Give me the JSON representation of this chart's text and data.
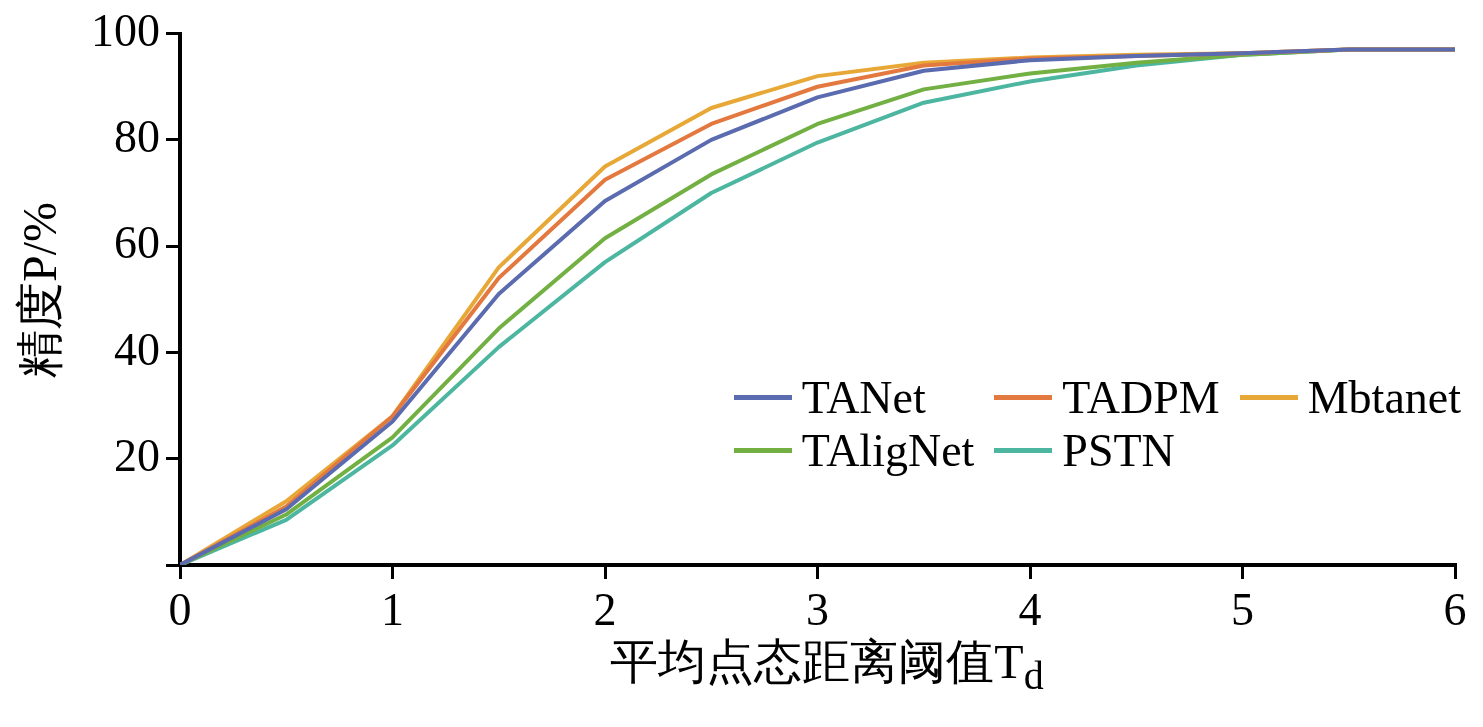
{
  "chart_data": {
    "type": "line",
    "xlabel": "平均点态距离阈值T$_{d}$",
    "ylabel": "精度P/%",
    "x": [
      0,
      0.5,
      1,
      1.5,
      2,
      2.5,
      3,
      3.5,
      4,
      4.5,
      5,
      5.5,
      6
    ],
    "xlim": [
      0,
      6
    ],
    "xticks": [
      0,
      1,
      2,
      3,
      4,
      5,
      6
    ],
    "ylim": [
      0,
      100
    ],
    "yticks": [
      {
        "value": 0,
        "label": null
      },
      20,
      40,
      60,
      80,
      100
    ],
    "grid": false,
    "legend": "bottom right",
    "marker": "none",
    "line_style": "solid",
    "series": [
      {
        "name": "TANet",
        "color": "#5b6bb0",
        "values": [
          0,
          10.5,
          27,
          51,
          68.5,
          80,
          88,
          93,
          95,
          95.8,
          96.3,
          97,
          97
        ]
      },
      {
        "name": "TADPM",
        "color": "#e4793f",
        "values": [
          0,
          11,
          28,
          54,
          72.5,
          83,
          90,
          94,
          95.3,
          95.8,
          96.3,
          97,
          97
        ]
      },
      {
        "name": "Mbtanet",
        "color": "#e8a838",
        "values": [
          0,
          12,
          28,
          56,
          75,
          86,
          92,
          94.5,
          95.5,
          96,
          96.3,
          97,
          97
        ]
      },
      {
        "name": "TAligNet",
        "color": "#72b043",
        "values": [
          0,
          9.5,
          24,
          44.5,
          61.5,
          73.5,
          83,
          89.5,
          92.5,
          94.5,
          96,
          97,
          97
        ]
      },
      {
        "name": "PSTN",
        "color": "#4db6a0",
        "values": [
          0,
          8.5,
          22.5,
          41,
          57,
          70,
          79.5,
          87,
          91,
          94,
          96,
          97,
          97
        ]
      }
    ]
  }
}
